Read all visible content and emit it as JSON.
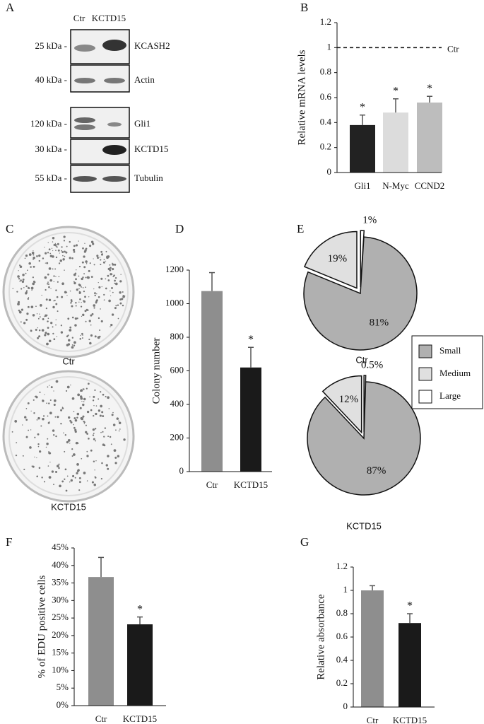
{
  "blot": {
    "panel": "A",
    "lanes": [
      "Ctr",
      "KCTD15"
    ],
    "rows": [
      {
        "size": "25 kDa -",
        "protein": "KCASH2"
      },
      {
        "size": "40 kDa -",
        "protein": "Actin"
      },
      {
        "size": "120 kDa -",
        "protein": "Gli1"
      },
      {
        "size": "30 kDa -",
        "protein": "KCTD15"
      },
      {
        "size": "55 kDa -",
        "protein": "Tubulin"
      }
    ]
  },
  "plates": {
    "panel": "C",
    "labels": [
      "Ctr",
      "KCTD15"
    ]
  },
  "chart_data": [
    {
      "type": "bar",
      "panel": "B",
      "ylabel": "Relative mRNA levels",
      "categories": [
        "Gli1",
        "N-Myc",
        "CCND2"
      ],
      "values": [
        0.38,
        0.48,
        0.56
      ],
      "errors": [
        0.08,
        0.11,
        0.05
      ],
      "colors": [
        "#222222",
        "#dcdcdc",
        "#bdbdbd"
      ],
      "significance": [
        "*",
        "*",
        "*"
      ],
      "reference_line": {
        "value": 1,
        "label": "Ctr"
      },
      "ylim": [
        0,
        1.2
      ],
      "yticks": [
        0,
        0.2,
        0.4,
        0.6,
        0.8,
        1,
        1.2
      ]
    },
    {
      "type": "bar",
      "panel": "D",
      "ylabel": "Colony number",
      "categories": [
        "Ctr",
        "KCTD15"
      ],
      "values": [
        1075,
        620
      ],
      "errors": [
        110,
        120
      ],
      "colors": [
        "#8e8e8e",
        "#1a1a1a"
      ],
      "significance": [
        null,
        "*"
      ],
      "ylim": [
        0,
        1200
      ],
      "yticks": [
        0,
        200,
        400,
        600,
        800,
        1000,
        1200
      ]
    },
    {
      "type": "pie",
      "panel": "E",
      "title": "Ctr",
      "categories": [
        "Small",
        "Medium",
        "Large"
      ],
      "values": [
        81,
        19,
        1
      ],
      "value_labels": [
        "81%",
        "19%",
        "1%"
      ],
      "colors": [
        "#b0b0b0",
        "#e0e0e0",
        "#ffffff"
      ]
    },
    {
      "type": "pie",
      "title": "KCTD15",
      "categories": [
        "Small",
        "Medium",
        "Large"
      ],
      "values": [
        87,
        12,
        0.5
      ],
      "value_labels": [
        "87%",
        "12%",
        "0.5%"
      ],
      "colors": [
        "#b0b0b0",
        "#e0e0e0",
        "#ffffff"
      ]
    },
    {
      "type": "bar",
      "panel": "F",
      "ylabel": "% of EDU positive cells",
      "categories": [
        "Ctr",
        "KCTD15"
      ],
      "values": [
        36.7,
        23.2
      ],
      "errors": [
        5.6,
        2.1
      ],
      "colors": [
        "#8e8e8e",
        "#1a1a1a"
      ],
      "significance": [
        null,
        "*"
      ],
      "ylim": [
        0,
        45
      ],
      "yticks": [
        {
          "value": 0,
          "label": "0%"
        },
        {
          "value": 5,
          "label": "5%"
        },
        {
          "value": 10,
          "label": "10%"
        },
        {
          "value": 15,
          "label": "15%"
        },
        {
          "value": 20,
          "label": "20%"
        },
        {
          "value": 25,
          "label": "25%"
        },
        {
          "value": 30,
          "label": "30%"
        },
        {
          "value": 35,
          "label": "35%"
        },
        {
          "value": 40,
          "label": "40%"
        },
        {
          "value": 45,
          "label": "45%"
        }
      ]
    },
    {
      "type": "bar",
      "panel": "G",
      "ylabel": "Relative absorbance",
      "categories": [
        "Ctr",
        "KCTD15"
      ],
      "values": [
        1.0,
        0.72
      ],
      "errors": [
        0.04,
        0.08
      ],
      "colors": [
        "#8e8e8e",
        "#1a1a1a"
      ],
      "significance": [
        null,
        "*"
      ],
      "ylim": [
        0,
        1.2
      ],
      "yticks": [
        0,
        0.2,
        0.4,
        0.6,
        0.8,
        1,
        1.2
      ]
    }
  ]
}
